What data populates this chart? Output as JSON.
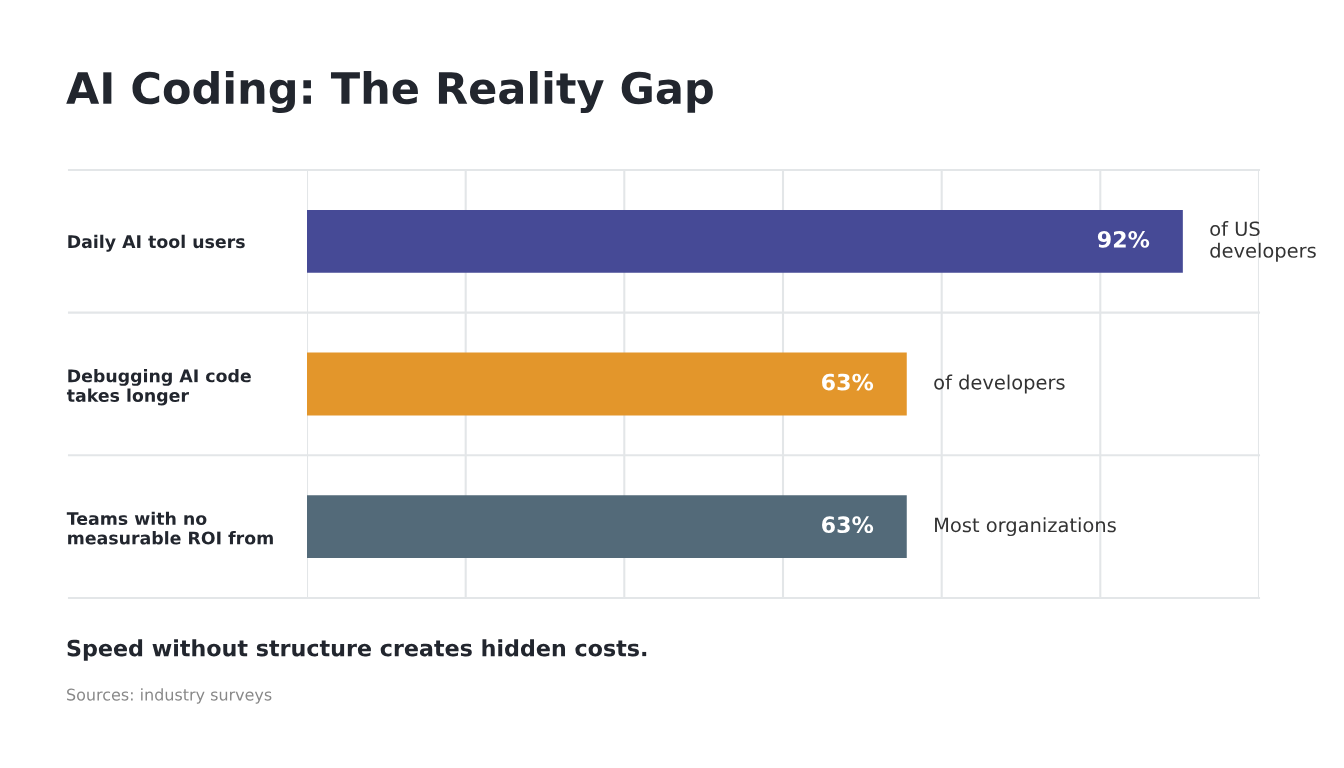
{
  "chart_data": {
    "type": "bar",
    "orientation": "horizontal",
    "title": "AI Coding: The Reality Gap",
    "categories": [
      "Daily AI tool users",
      "Debugging AI code\ntakes longer",
      "Teams with no\nmeasurable ROI from"
    ],
    "values": [
      92,
      63,
      63
    ],
    "colors": [
      "#464a96",
      "#e3962b",
      "#536a79"
    ],
    "value_labels": [
      "92%",
      "63%",
      "63%"
    ],
    "xlim": [
      0,
      100
    ],
    "xticks": [
      {
        "value": 0,
        "label": null
      },
      {
        "value": 16.67,
        "label": null
      },
      {
        "value": 33.33,
        "label": null
      },
      {
        "value": 50,
        "label": null
      },
      {
        "value": 66.67,
        "label": null
      },
      {
        "value": 83.33,
        "label": null
      },
      {
        "value": 100,
        "label": null
      }
    ],
    "tick_labels": "y",
    "grid": true,
    "annotations": [
      "of US\ndevelopers",
      "of developers",
      "Most organizations",
      "Speed without structure creates hidden costs.",
      "Sources: industry surveys"
    ]
  }
}
